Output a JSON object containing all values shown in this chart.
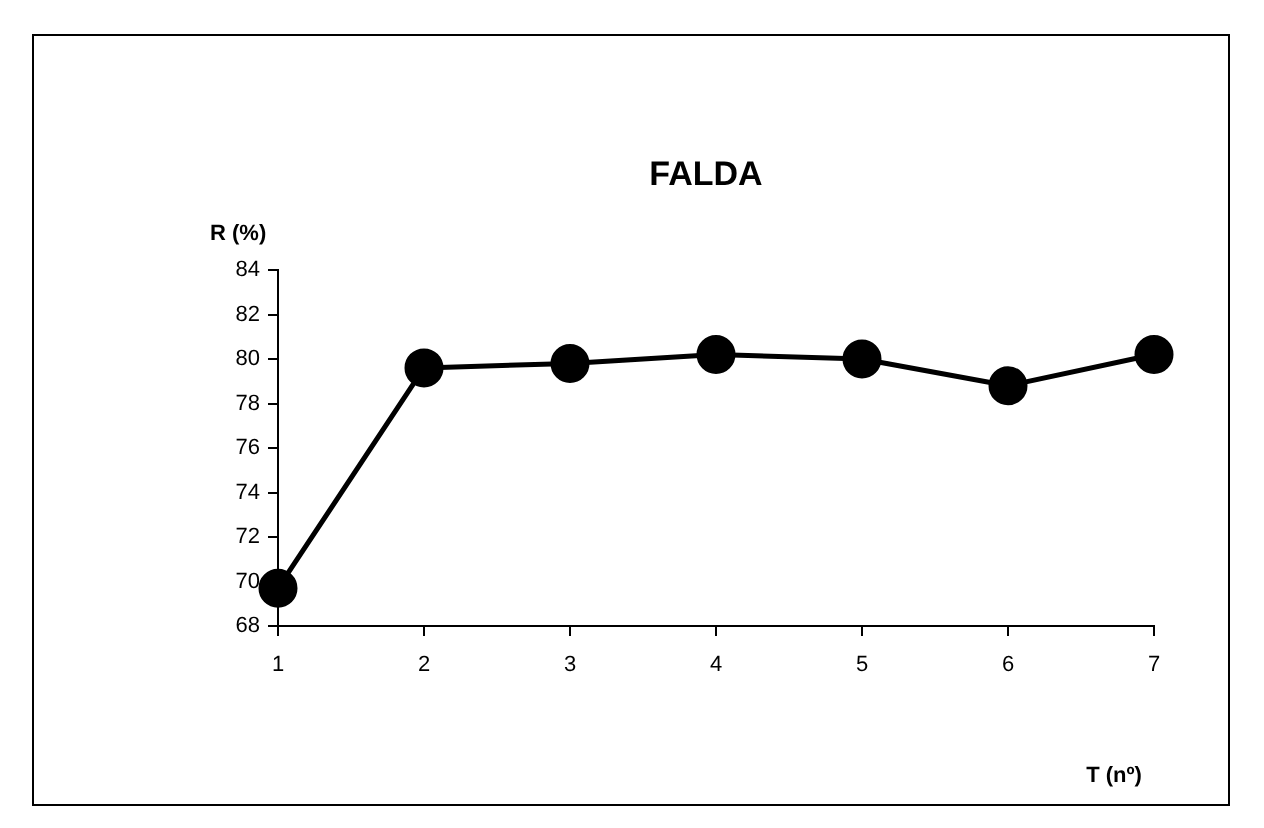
{
  "chart_data": {
    "type": "line",
    "title": "FALDA",
    "xlabel": "T (nº)",
    "ylabel": "R (%)",
    "x": [
      1,
      2,
      3,
      4,
      5,
      6,
      7
    ],
    "series": [
      {
        "color": "#000000",
        "values": [
          69.7,
          79.6,
          79.8,
          80.2,
          80.0,
          78.8,
          80.2
        ]
      }
    ],
    "xlim": [
      1,
      7
    ],
    "xticks": [
      1,
      2,
      3,
      4,
      5,
      6,
      7
    ],
    "ylim": [
      68,
      84
    ],
    "yticks": [
      68,
      70,
      72,
      74,
      76,
      78,
      80,
      82,
      84
    ],
    "grid": false,
    "legend": false,
    "marker": "circle",
    "line_style": "solid"
  }
}
